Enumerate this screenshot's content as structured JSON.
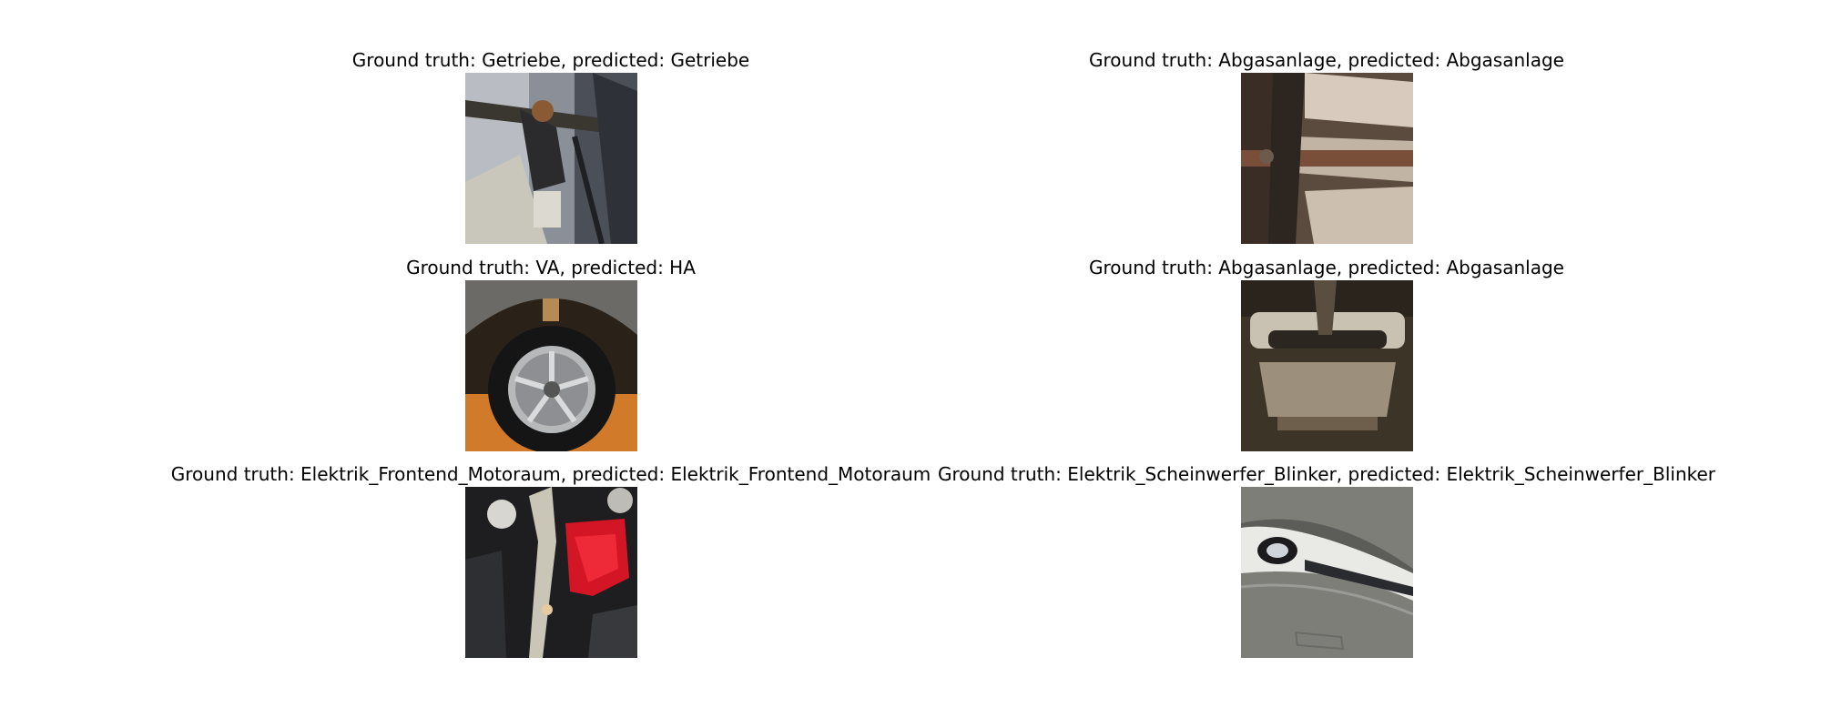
{
  "panels": [
    {
      "title": "Ground truth: Getriebe, predicted: Getriebe",
      "image": "gearbox-photo"
    },
    {
      "title": "Ground truth: Abgasanlage, predicted: Abgasanlage",
      "image": "exhaust-underbody-photo"
    },
    {
      "title": "Ground truth: VA, predicted: HA",
      "image": "wheel-rim-photo"
    },
    {
      "title": "Ground truth: Abgasanlage, predicted: Abgasanlage",
      "image": "exhaust-rear-photo"
    },
    {
      "title": "Ground truth: Elektrik_Frontend_Motoraum, predicted: Elektrik_Frontend_Motoraum",
      "image": "engine-bay-red-cover-photo"
    },
    {
      "title": "Ground truth: Elektrik_Scheinwerfer_Blinker, predicted: Elektrik_Scheinwerfer_Blinker",
      "image": "headlight-photo"
    }
  ]
}
